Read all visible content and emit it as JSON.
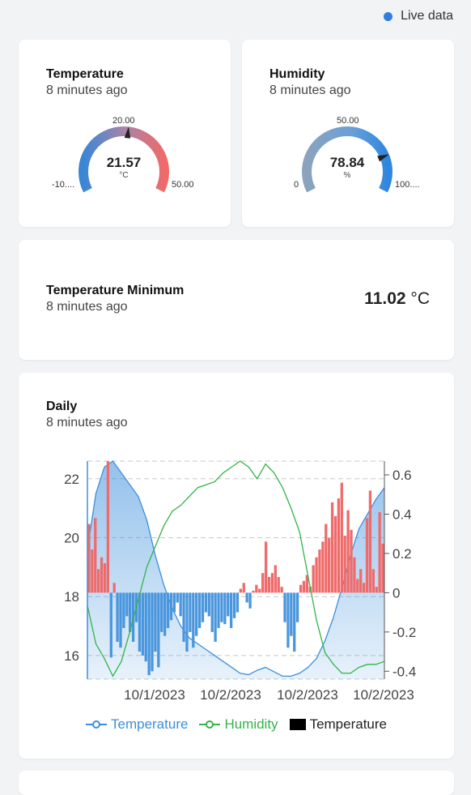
{
  "header": {
    "live_label": "Live data",
    "live_color": "#2f7de1"
  },
  "temperature_card": {
    "title": "Temperature",
    "subtitle": "8 minutes ago",
    "value": "21.57",
    "unit": "°C",
    "min_label": "-10....",
    "max_label": "50.00",
    "mid_label": "20.00",
    "gauge_fraction": 0.526
  },
  "humidity_card": {
    "title": "Humidity",
    "subtitle": "8 minutes ago",
    "value": "78.84",
    "unit": "%",
    "min_label": "0",
    "max_label": "100....",
    "mid_label": "50.00",
    "gauge_fraction": 0.788
  },
  "min_card": {
    "title": "Temperature Minimum",
    "subtitle": "8 minutes ago",
    "value": "11.02",
    "unit": "°C"
  },
  "daily_card": {
    "title": "Daily",
    "subtitle": "8 minutes ago"
  },
  "colors": {
    "temperature": "#3b8fdc",
    "humidity": "#33b34a",
    "bar_positive": "#ef6b6b",
    "bar_negative": "#4a96dd",
    "gauge_cold": "#3a86d6",
    "gauge_hot": "#f06a6a"
  },
  "chart_data": {
    "type": "line",
    "x_tick_labels": [
      "10/1/2023",
      "10/2/2023",
      "10/2/2023",
      "10/2/2023"
    ],
    "y_left_ticks": [
      "16",
      "18",
      "20",
      "22"
    ],
    "y_right_ticks": [
      "-0.4",
      "-0.2",
      "0",
      "0.2",
      "0.4",
      "0.6"
    ],
    "y_left_range": [
      15.2,
      22.6
    ],
    "y_right_range": [
      -0.44,
      0.67
    ],
    "grid": true,
    "legend_position": "bottom",
    "legend": [
      "Temperature",
      "Humidity",
      "Temperature"
    ],
    "series": [
      {
        "name": "Temperature",
        "kind": "area",
        "axis": "left",
        "values": [
          19.6,
          21.5,
          22.4,
          22.6,
          22.2,
          21.8,
          21.4,
          20.6,
          19.4,
          18.4,
          17.6,
          17.0,
          16.6,
          16.4,
          16.2,
          16.0,
          15.8,
          15.6,
          15.4,
          15.35,
          15.5,
          15.6,
          15.45,
          15.3,
          15.3,
          15.4,
          15.6,
          15.9,
          16.5,
          17.3,
          18.3,
          19.4,
          20.3,
          20.8,
          21.3,
          21.7
        ]
      },
      {
        "name": "Humidity",
        "kind": "line",
        "axis": "left",
        "values": [
          17.7,
          16.4,
          15.9,
          15.3,
          15.8,
          16.8,
          17.9,
          19.0,
          19.7,
          20.4,
          20.9,
          21.1,
          21.4,
          21.7,
          21.8,
          21.9,
          22.2,
          22.4,
          22.6,
          22.4,
          22.0,
          22.5,
          22.2,
          21.7,
          21.0,
          20.2,
          18.7,
          17.2,
          16.1,
          15.7,
          15.4,
          15.4,
          15.6,
          15.7,
          15.7,
          15.8
        ]
      },
      {
        "name": "Temperature",
        "kind": "bar",
        "axis": "right",
        "values": [
          0.35,
          0.22,
          0.38,
          0.12,
          0.18,
          0.15,
          0.67,
          -0.33,
          0.05,
          -0.25,
          -0.28,
          -0.18,
          -0.12,
          -0.2,
          -0.25,
          -0.15,
          -0.3,
          -0.32,
          -0.35,
          -0.42,
          -0.4,
          -0.3,
          -0.38,
          -0.2,
          -0.22,
          -0.18,
          -0.14,
          -0.1,
          -0.05,
          -0.12,
          -0.25,
          -0.3,
          -0.2,
          -0.28,
          -0.22,
          -0.18,
          -0.15,
          -0.1,
          -0.12,
          -0.2,
          -0.25,
          -0.18,
          -0.15,
          -0.16,
          -0.12,
          -0.18,
          -0.13,
          -0.1,
          0.02,
          0.05,
          -0.05,
          -0.08,
          0.01,
          0.04,
          0.02,
          0.1,
          0.26,
          0.08,
          0.1,
          0.14,
          0.08,
          0.03,
          -0.15,
          -0.28,
          -0.22,
          -0.3,
          -0.15,
          0.04,
          0.06,
          0.09,
          0.03,
          0.14,
          0.18,
          0.22,
          0.26,
          0.35,
          0.28,
          0.46,
          0.39,
          0.48,
          0.56,
          0.29,
          0.42,
          0.32,
          0.18,
          0.07,
          0.12,
          0.05,
          0.38,
          0.52,
          0.12,
          0.03,
          0.41,
          0.25
        ]
      }
    ]
  }
}
